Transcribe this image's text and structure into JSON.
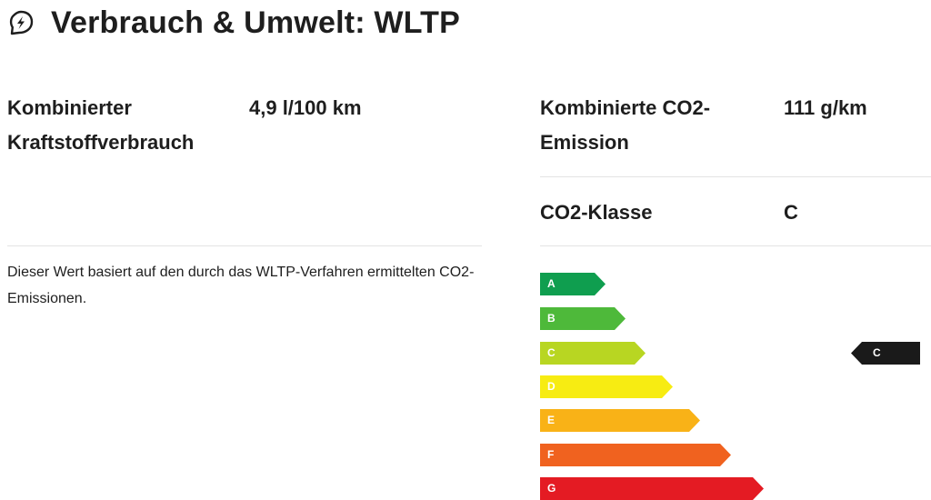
{
  "header": {
    "title": "Verbrauch & Umwelt: WLTP",
    "icon": "leaf-bolt-icon"
  },
  "fuel": {
    "label_line1": "Kombinierter",
    "label_line2": "Kraftstoffverbrauch",
    "value": "4,9 l/100 km"
  },
  "co2_emission": {
    "label_line1": "Kombinierte CO2-",
    "label_line2": "Emission",
    "value": "111 g/km"
  },
  "co2_class": {
    "label": "CO2-Klasse",
    "value": "C"
  },
  "note": {
    "text": "Dieser Wert basiert auf den durch das WLTP-Verfahren ermittelten CO2-Emissionen."
  },
  "efficiency_scale": {
    "classes": [
      {
        "letter": "A",
        "color": "#0f9e4f"
      },
      {
        "letter": "B",
        "color": "#4eb93a"
      },
      {
        "letter": "C",
        "color": "#b8d622"
      },
      {
        "letter": "D",
        "color": "#f7ec12"
      },
      {
        "letter": "E",
        "color": "#f9b217"
      },
      {
        "letter": "F",
        "color": "#f0621f"
      },
      {
        "letter": "G",
        "color": "#e41b23"
      }
    ],
    "selected": "C",
    "marker_color": "#1a1a1a"
  }
}
